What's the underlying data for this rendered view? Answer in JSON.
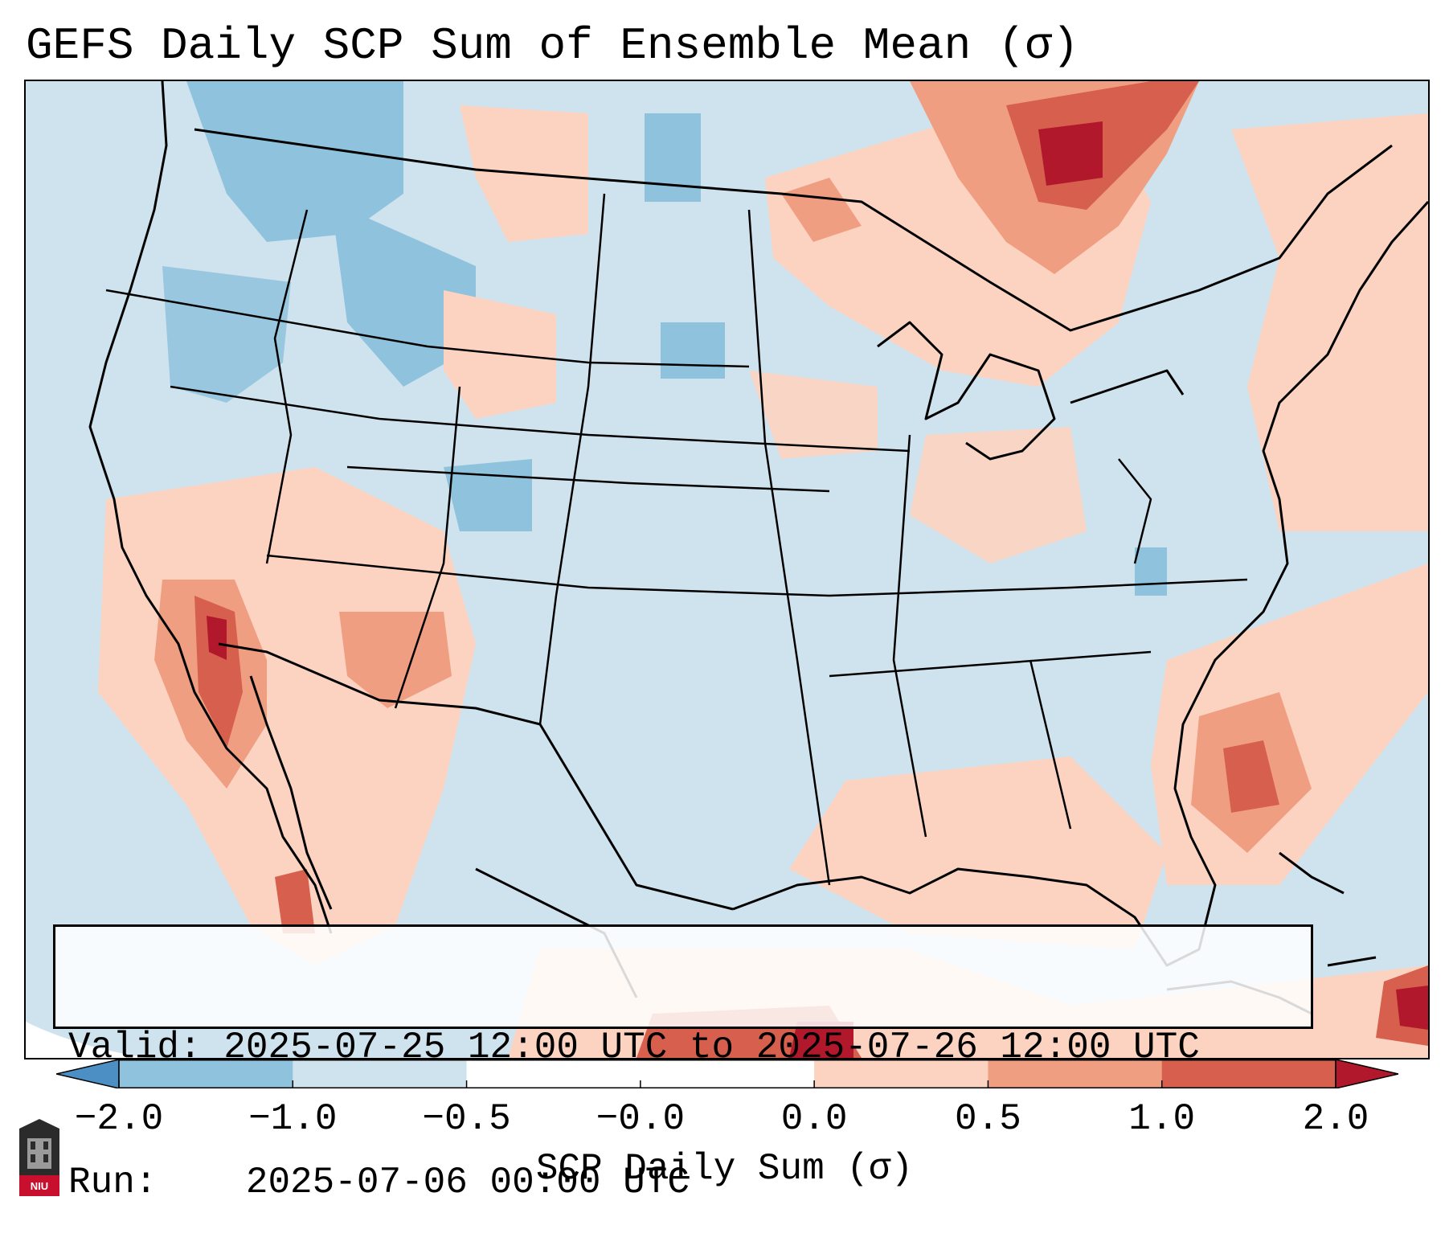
{
  "title": "GEFS Daily SCP Sum of Ensemble Mean (σ)",
  "info_box": {
    "valid_label": "Valid:",
    "valid_value": "2025-07-25 12:00 UTC to 2025-07-26 12:00 UTC",
    "run_label": "Run:",
    "run_value": "2025-07-06 00:00 UTC"
  },
  "colorbar": {
    "label": "SCP Daily Sum (σ)",
    "ticks": [
      "−2.0",
      "−1.0",
      "−0.5",
      "−0.0",
      "0.0",
      "0.5",
      "1.0",
      "2.0"
    ],
    "colors": [
      "#4b8fc5",
      "#8fc2dd",
      "#cfe3ef",
      "#ffffff",
      "#ffffff",
      "#fcd3c0",
      "#f09e82",
      "#d6604d",
      "#b2182b"
    ]
  },
  "logo": {
    "text": "NIU",
    "icon": "university-logo-icon"
  },
  "palette": {
    "background": "#cfe3ef",
    "neg_moderate": "#8fc2dd",
    "pos_light": "#fcd3c0",
    "pos_moderate": "#f09e82",
    "pos_strong": "#d6604d",
    "pos_extreme": "#b2182b",
    "outline": "#000000"
  }
}
